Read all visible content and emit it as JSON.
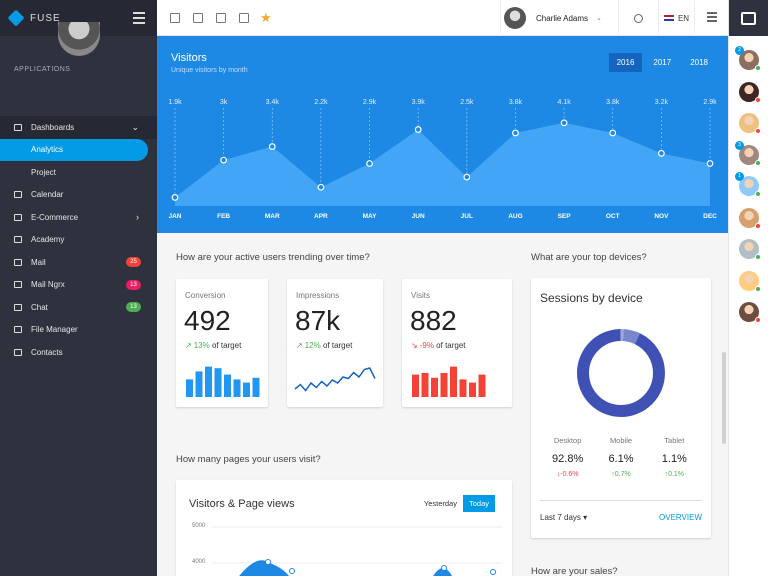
{
  "sidebar": {
    "brand": "FUSE",
    "section": "APPLICATIONS",
    "items": [
      {
        "label": "Dashboards",
        "kind": "group",
        "chev": "⌄"
      },
      {
        "label": "Analytics",
        "kind": "active"
      },
      {
        "label": "Project",
        "kind": "sub"
      },
      {
        "label": "Calendar",
        "kind": "item"
      },
      {
        "label": "E-Commerce",
        "kind": "item",
        "chev": "›"
      },
      {
        "label": "Academy",
        "kind": "item"
      },
      {
        "label": "Mail",
        "kind": "item",
        "badge": "25",
        "badge_color": "#f44336"
      },
      {
        "label": "Mail Ngrx",
        "kind": "item",
        "badge": "13",
        "badge_color": "#e91e63"
      },
      {
        "label": "Chat",
        "kind": "item",
        "badge": "13",
        "badge_color": "#4caf50"
      },
      {
        "label": "File Manager",
        "kind": "item"
      },
      {
        "label": "Contacts",
        "kind": "item"
      }
    ]
  },
  "topbar": {
    "user_name": "Charlie Adams",
    "language": "EN",
    "icons": [
      "calendar-icon",
      "mail-icon",
      "contacts-icon",
      "checkbox-icon",
      "star-icon"
    ]
  },
  "visitors": {
    "title": "Visitors",
    "subtitle": "Unique visitors by month",
    "years": [
      "2016",
      "2017",
      "2018"
    ],
    "selected_year": "2016",
    "chart_data": {
      "type": "area",
      "categories": [
        "JAN",
        "FEB",
        "MAR",
        "APR",
        "MAY",
        "JUN",
        "JUL",
        "AUG",
        "SEP",
        "OCT",
        "NOV",
        "DEC"
      ],
      "value_labels": [
        "1.9k",
        "3k",
        "3.4k",
        "2.2k",
        "2.9k",
        "3.9k",
        "2.5k",
        "3.8k",
        "4.1k",
        "3.8k",
        "3.2k",
        "2.9k"
      ],
      "values": [
        1.9,
        3.0,
        3.4,
        2.2,
        2.9,
        3.9,
        2.5,
        3.8,
        4.1,
        3.8,
        3.2,
        2.9
      ]
    }
  },
  "sections": {
    "active_users": "How are your active users trending over time?",
    "devices": "What are your top devices?",
    "pages": "How many pages your users visit?",
    "sales": "How are your sales?"
  },
  "kpis": [
    {
      "label": "Conversion",
      "value": "492",
      "change": "13%",
      "suffix": "of target",
      "direction": "up",
      "color": "#2196f3",
      "chart": "bar",
      "bars": [
        0.55,
        0.8,
        0.95,
        0.9,
        0.7,
        0.55,
        0.45,
        0.6
      ]
    },
    {
      "label": "Impressions",
      "value": "87k",
      "change": "12%",
      "suffix": "of target",
      "direction": "up",
      "color": "#1565c0",
      "chart": "line",
      "bars": [
        0.2,
        0.35,
        0.15,
        0.4,
        0.25,
        0.45,
        0.3,
        0.5,
        0.4,
        0.6,
        0.55,
        0.75,
        0.6,
        0.85,
        0.9,
        0.55
      ]
    },
    {
      "label": "Visits",
      "value": "882",
      "change": "-9%",
      "suffix": "of target",
      "direction": "down",
      "color": "#f44336",
      "chart": "bar",
      "bars": [
        0.7,
        0.75,
        0.6,
        0.75,
        0.95,
        0.55,
        0.45,
        0.7
      ]
    }
  ],
  "devices": {
    "title": "Sessions by device",
    "chart_data": {
      "type": "pie",
      "categories": [
        "Desktop",
        "Mobile",
        "Tablet"
      ],
      "values": [
        92.8,
        6.1,
        1.1
      ],
      "colors": [
        "#3f51b5",
        "#7986cb",
        "#9fa8da"
      ]
    },
    "items": [
      {
        "name": "Desktop",
        "value": "92.8%",
        "change": "-0.6%",
        "direction": "down"
      },
      {
        "name": "Mobile",
        "value": "6.1%",
        "change": "0.7%",
        "direction": "up"
      },
      {
        "name": "Tablet",
        "value": "1.1%",
        "change": "0.1%",
        "direction": "up"
      }
    ],
    "range": "Last 7 days",
    "overview": "OVERVIEW"
  },
  "pageviews": {
    "title": "Visitors & Page views",
    "buttons": [
      "Yesterday",
      "Today"
    ],
    "selected": "Today",
    "y_ticks": [
      "5000",
      "4000"
    ]
  },
  "colors": {
    "primary": "#1e88e5",
    "accent": "#039be5",
    "sidebar": "#2d323e",
    "up": "#4caf50",
    "down": "#f44336"
  }
}
